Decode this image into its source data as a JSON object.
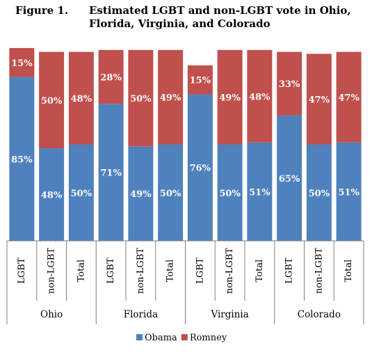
{
  "figure": {
    "number": "Figure 1.",
    "title": "Estimated LGBT and non-LGBT vote in Ohio, Florida, Virginia, and Colorado"
  },
  "chart_data": {
    "type": "bar",
    "stacked": true,
    "groups": [
      {
        "name": "Ohio",
        "categories": [
          "LGBT",
          "non-LGBT",
          "Total"
        ]
      },
      {
        "name": "Florida",
        "categories": [
          "LGBT",
          "non-LGBT",
          "Total"
        ]
      },
      {
        "name": "Virginia",
        "categories": [
          "LGBT",
          "non-LGBT",
          "Total"
        ]
      },
      {
        "name": "Colorado",
        "categories": [
          "LGBT",
          "non-LGBT",
          "Total"
        ]
      }
    ],
    "series": [
      {
        "name": "Obama",
        "color": "#4f81bd",
        "values": [
          85,
          48,
          50,
          71,
          49,
          50,
          76,
          50,
          51,
          65,
          50,
          51
        ],
        "labels": [
          "85%",
          "48%",
          "50%",
          "71%",
          "49%",
          "50%",
          "76%",
          "50%",
          "51%",
          "65%",
          "50%",
          "51%"
        ]
      },
      {
        "name": "Romney",
        "color": "#c0504d",
        "values": [
          15,
          50,
          48,
          28,
          50,
          49,
          15,
          49,
          48,
          33,
          47,
          47
        ],
        "labels": [
          "15%",
          "50%",
          "48%",
          "28%",
          "50%",
          "49%",
          "15%",
          "49%",
          "48%",
          "33%",
          "47%",
          "47%"
        ]
      }
    ],
    "ylim": [
      0,
      100
    ],
    "legend_position": "bottom",
    "grid": false
  }
}
